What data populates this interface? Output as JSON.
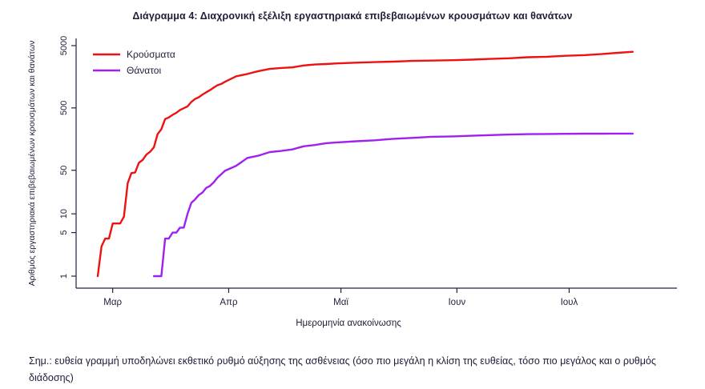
{
  "page": {
    "title": "Διάγραμμα 4: Διαχρονική εξέλιξη εργαστηριακά επιβεβαιωμένων κρουσμάτων και θανάτων",
    "note": "Σημ.: ευθεία γραμμή υποδηλώνει εκθετικό ρυθμό αύξησης της ασθένειας (όσο πιο μεγάλη η κλίση της ευθείας, τόσο πιο μεγάλος και ο ρυθμός διάδοσης)"
  },
  "chart_data": {
    "type": "line",
    "title": "Διάγραμμα 4: Διαχρονική εξέλιξη εργαστηριακά επιβεβαιωμένων κρουσμάτων και θανάτων",
    "xlabel": "Ημερομηνία ανακοίνωσης",
    "ylabel": "Αριθμός εργαστηριακά επιβεβαιωμένων κρουσμάτων και θανάτων",
    "y_scale": "log10",
    "ylim": [
      1,
      5000
    ],
    "y_ticks": [
      1,
      5,
      10,
      50,
      500,
      5000
    ],
    "x_ticks": [
      {
        "label": "Μαρ",
        "day": 4
      },
      {
        "label": "Απρ",
        "day": 35
      },
      {
        "label": "Μαϊ",
        "day": 65
      },
      {
        "label": "Ιουν",
        "day": 96
      },
      {
        "label": "Ιουλ",
        "day": 126
      }
    ],
    "grid": false,
    "legend_position": "top-left",
    "axis_color": "#21213c",
    "series": [
      {
        "name": "Κρούσματα",
        "color": "#ee1111",
        "points": [
          [
            0,
            1
          ],
          [
            1,
            3
          ],
          [
            2,
            4
          ],
          [
            3,
            4
          ],
          [
            4,
            7
          ],
          [
            5,
            7
          ],
          [
            6,
            7
          ],
          [
            7,
            9
          ],
          [
            8,
            31
          ],
          [
            9,
            45
          ],
          [
            10,
            46
          ],
          [
            11,
            66
          ],
          [
            12,
            73
          ],
          [
            13,
            89
          ],
          [
            14,
            99
          ],
          [
            15,
            117
          ],
          [
            16,
            190
          ],
          [
            17,
            228
          ],
          [
            18,
            331
          ],
          [
            19,
            352
          ],
          [
            20,
            387
          ],
          [
            21,
            418
          ],
          [
            22,
            464
          ],
          [
            23,
            495
          ],
          [
            24,
            530
          ],
          [
            25,
            624
          ],
          [
            26,
            695
          ],
          [
            27,
            743
          ],
          [
            28,
            821
          ],
          [
            29,
            892
          ],
          [
            30,
            966
          ],
          [
            31,
            1061
          ],
          [
            32,
            1156
          ],
          [
            33,
            1212
          ],
          [
            34,
            1314
          ],
          [
            37,
            1613
          ],
          [
            40,
            1755
          ],
          [
            43,
            1955
          ],
          [
            46,
            2114
          ],
          [
            49,
            2192
          ],
          [
            52,
            2235
          ],
          [
            55,
            2401
          ],
          [
            58,
            2490
          ],
          [
            61,
            2534
          ],
          [
            64,
            2591
          ],
          [
            69,
            2663
          ],
          [
            74,
            2716
          ],
          [
            79,
            2770
          ],
          [
            84,
            2840
          ],
          [
            89,
            2878
          ],
          [
            95,
            2915
          ],
          [
            100,
            2980
          ],
          [
            105,
            3058
          ],
          [
            110,
            3134
          ],
          [
            115,
            3256
          ],
          [
            120,
            3310
          ],
          [
            125,
            3432
          ],
          [
            130,
            3519
          ],
          [
            135,
            3672
          ],
          [
            139,
            3826
          ],
          [
            143,
            3983
          ]
        ]
      },
      {
        "name": "Θάνατοι",
        "color": "#a020f0",
        "points": [
          [
            15,
            1
          ],
          [
            16,
            1
          ],
          [
            17,
            1
          ],
          [
            18,
            4
          ],
          [
            19,
            4
          ],
          [
            20,
            5
          ],
          [
            21,
            5
          ],
          [
            22,
            6
          ],
          [
            23,
            6
          ],
          [
            24,
            10
          ],
          [
            25,
            15
          ],
          [
            26,
            17
          ],
          [
            27,
            20
          ],
          [
            28,
            22
          ],
          [
            29,
            26
          ],
          [
            30,
            28
          ],
          [
            31,
            32
          ],
          [
            32,
            38
          ],
          [
            33,
            43
          ],
          [
            34,
            49
          ],
          [
            37,
            59
          ],
          [
            40,
            79
          ],
          [
            43,
            86
          ],
          [
            46,
            98
          ],
          [
            49,
            102
          ],
          [
            52,
            108
          ],
          [
            55,
            121
          ],
          [
            58,
            127
          ],
          [
            61,
            136
          ],
          [
            64,
            140
          ],
          [
            69,
            146
          ],
          [
            74,
            151
          ],
          [
            79,
            160
          ],
          [
            84,
            165
          ],
          [
            89,
            172
          ],
          [
            95,
            175
          ],
          [
            100,
            179
          ],
          [
            105,
            183
          ],
          [
            110,
            187
          ],
          [
            115,
            190
          ],
          [
            120,
            191
          ],
          [
            125,
            192
          ],
          [
            130,
            193
          ],
          [
            135,
            193
          ],
          [
            139,
            194
          ],
          [
            143,
            194
          ]
        ]
      }
    ]
  }
}
